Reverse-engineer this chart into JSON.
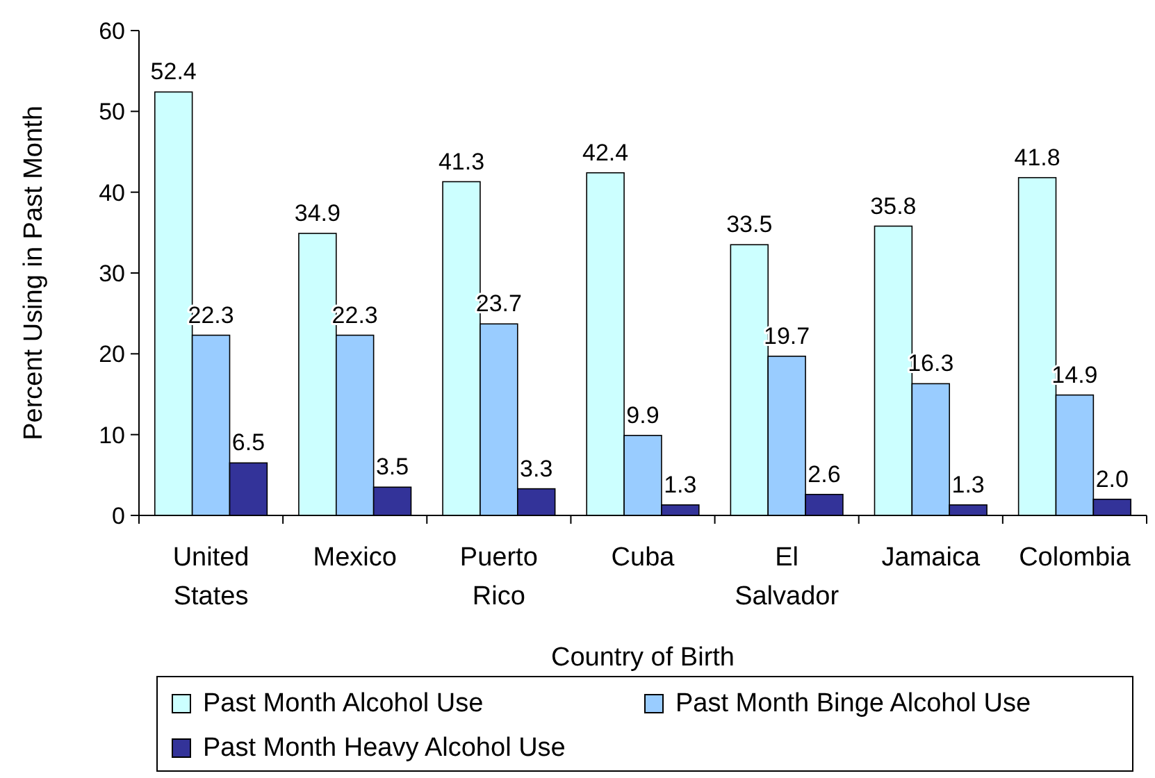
{
  "chart_data": {
    "type": "bar",
    "xlabel": "Country of Birth",
    "ylabel": "Percent Using in Past Month",
    "categories": [
      "United States",
      "Mexico",
      "Puerto Rico",
      "Cuba",
      "El Salvador",
      "Jamaica",
      "Colombia"
    ],
    "series": [
      {
        "name": "Past Month Alcohol Use",
        "color": "#ccffff",
        "values": [
          52.4,
          34.9,
          41.3,
          42.4,
          33.5,
          35.8,
          41.8
        ],
        "value_labels": [
          "52.4",
          "34.9",
          "41.3",
          "42.4",
          "33.5",
          "35.8",
          "41.8"
        ]
      },
      {
        "name": "Past Month Binge Alcohol Use",
        "color": "#99ccff",
        "values": [
          22.3,
          22.3,
          23.7,
          9.9,
          19.7,
          16.3,
          14.9
        ],
        "value_labels": [
          "22.3",
          "22.3",
          "23.7",
          "9.9",
          "19.7",
          "16.3",
          "14.9"
        ]
      },
      {
        "name": "Past Month Heavy Alcohol Use",
        "color": "#333399",
        "values": [
          6.5,
          3.5,
          3.3,
          1.3,
          2.6,
          1.3,
          2.0
        ],
        "value_labels": [
          "6.5",
          "3.5",
          "3.3",
          "1.3",
          "2.6",
          "1.3",
          "2.0"
        ]
      }
    ],
    "ylim": [
      0,
      60
    ],
    "yticks": [
      0,
      10,
      20,
      30,
      40,
      50,
      60
    ],
    "legend": "bottom"
  }
}
